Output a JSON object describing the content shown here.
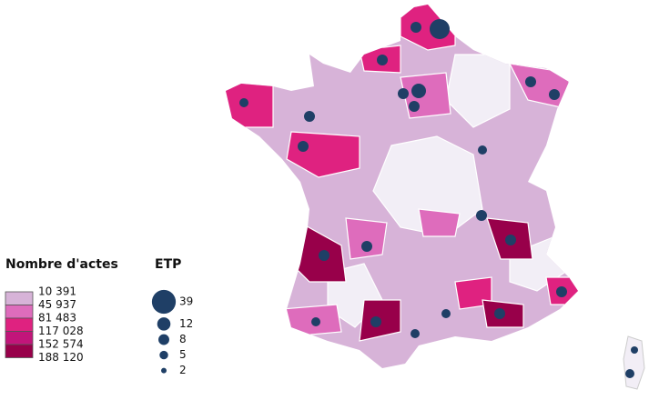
{
  "legend_choropleth": {
    "title": "Nombre d'actes",
    "classes": [
      {
        "label": "10 391",
        "color": "#f2eef6"
      },
      {
        "label": "45 937",
        "color": "#d7b3d8"
      },
      {
        "label": "81 483",
        "color": "#de6cbc"
      },
      {
        "label": "117 028",
        "color": "#df2280"
      },
      {
        "label": "152 574",
        "color": "#c2157a"
      },
      {
        "label": "188 120",
        "color": "#98004a"
      }
    ]
  },
  "legend_bubbles": {
    "title": "ETP",
    "color": "#1f3f66",
    "sizes": [
      39,
      12,
      8,
      5,
      2
    ]
  }
}
